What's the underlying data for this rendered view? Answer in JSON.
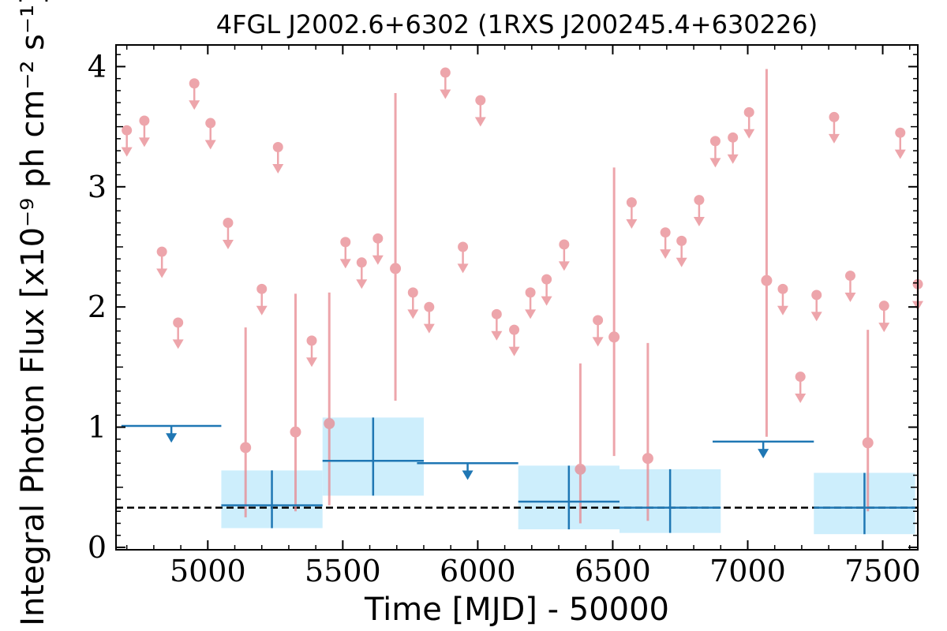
{
  "chart_data": {
    "type": "scatter",
    "title": "4FGL J2002.6+6302 (1RXS J200245.4+630226)",
    "xlabel": "Time [MJD] - 50000",
    "ylabel": "Integral Photon Flux [x10⁻⁹ ph cm⁻² s⁻¹]",
    "xlim": [
      4660,
      7630
    ],
    "ylim": [
      -0.02,
      4.18
    ],
    "xticks": [
      5000,
      5500,
      6000,
      6500,
      7000,
      7500
    ],
    "yticks": [
      0,
      1,
      2,
      3,
      4
    ],
    "grid": false,
    "reference_line": {
      "y": 0.33,
      "style": "dashed",
      "color": "#000000"
    },
    "series": [
      {
        "kind": "short_bin_upper_limits",
        "color": "#e8888f",
        "points": [
          {
            "x": 4700,
            "y": 3.47
          },
          {
            "x": 4765,
            "y": 3.55
          },
          {
            "x": 4830,
            "y": 2.46
          },
          {
            "x": 4890,
            "y": 1.87
          },
          {
            "x": 4950,
            "y": 3.86
          },
          {
            "x": 5010,
            "y": 3.53
          },
          {
            "x": 5075,
            "y": 2.7
          },
          {
            "x": 5200,
            "y": 2.15
          },
          {
            "x": 5260,
            "y": 3.33
          },
          {
            "x": 5385,
            "y": 1.72
          },
          {
            "x": 5510,
            "y": 2.54
          },
          {
            "x": 5570,
            "y": 2.37
          },
          {
            "x": 5630,
            "y": 2.57
          },
          {
            "x": 5760,
            "y": 2.12
          },
          {
            "x": 5820,
            "y": 2.0
          },
          {
            "x": 5880,
            "y": 3.95
          },
          {
            "x": 5945,
            "y": 2.5
          },
          {
            "x": 6010,
            "y": 3.72
          },
          {
            "x": 6070,
            "y": 1.94
          },
          {
            "x": 6135,
            "y": 1.81
          },
          {
            "x": 6195,
            "y": 2.12
          },
          {
            "x": 6255,
            "y": 2.23
          },
          {
            "x": 6320,
            "y": 2.52
          },
          {
            "x": 6445,
            "y": 1.89
          },
          {
            "x": 6570,
            "y": 2.87
          },
          {
            "x": 6695,
            "y": 2.62
          },
          {
            "x": 6755,
            "y": 2.55
          },
          {
            "x": 6820,
            "y": 2.89
          },
          {
            "x": 6880,
            "y": 3.38
          },
          {
            "x": 6945,
            "y": 3.41
          },
          {
            "x": 7005,
            "y": 3.62
          },
          {
            "x": 7130,
            "y": 2.15
          },
          {
            "x": 7195,
            "y": 1.42
          },
          {
            "x": 7255,
            "y": 2.1
          },
          {
            "x": 7320,
            "y": 3.58
          },
          {
            "x": 7380,
            "y": 2.26
          },
          {
            "x": 7505,
            "y": 2.01
          },
          {
            "x": 7565,
            "y": 3.45
          },
          {
            "x": 7630,
            "y": 2.19
          }
        ]
      },
      {
        "kind": "short_bin_detections",
        "color": "#e8888f",
        "points": [
          {
            "x": 5140,
            "y": 0.83,
            "ylo": 0.25,
            "yhi": 1.83
          },
          {
            "x": 5325,
            "y": 0.96,
            "ylo": 0.3,
            "yhi": 2.11
          },
          {
            "x": 5450,
            "y": 1.03,
            "ylo": 0.35,
            "yhi": 2.12
          },
          {
            "x": 5695,
            "y": 2.32,
            "ylo": 1.22,
            "yhi": 3.78
          },
          {
            "x": 6380,
            "y": 0.65,
            "ylo": 0.2,
            "yhi": 1.53
          },
          {
            "x": 6505,
            "y": 1.75,
            "ylo": 0.76,
            "yhi": 3.16
          },
          {
            "x": 6630,
            "y": 0.74,
            "ylo": 0.22,
            "yhi": 1.7
          },
          {
            "x": 7070,
            "y": 2.22,
            "ylo": 0.92,
            "yhi": 3.98
          },
          {
            "x": 7445,
            "y": 0.87,
            "ylo": 0.3,
            "yhi": 1.81
          }
        ]
      },
      {
        "kind": "long_bin_upper_limits",
        "color": "#1f77b4",
        "points": [
          {
            "x0": 4680,
            "x1": 5050,
            "y": 1.01
          },
          {
            "x0": 5775,
            "x1": 6150,
            "y": 0.7
          },
          {
            "x0": 6870,
            "x1": 7245,
            "y": 0.88
          }
        ]
      },
      {
        "kind": "long_bin_detections",
        "color": "#1f77b4",
        "band_color": "#cdeefc",
        "points": [
          {
            "x0": 5050,
            "x1": 5425,
            "y": 0.35,
            "ylo": 0.16,
            "yhi": 0.64
          },
          {
            "x0": 5425,
            "x1": 5800,
            "y": 0.72,
            "ylo": 0.43,
            "yhi": 1.08
          },
          {
            "x0": 6150,
            "x1": 6525,
            "y": 0.38,
            "ylo": 0.15,
            "yhi": 0.68
          },
          {
            "x0": 6525,
            "x1": 6900,
            "y": 0.33,
            "ylo": 0.12,
            "yhi": 0.65
          },
          {
            "x0": 7245,
            "x1": 7620,
            "y": 0.33,
            "ylo": 0.11,
            "yhi": 0.62
          }
        ]
      }
    ]
  }
}
